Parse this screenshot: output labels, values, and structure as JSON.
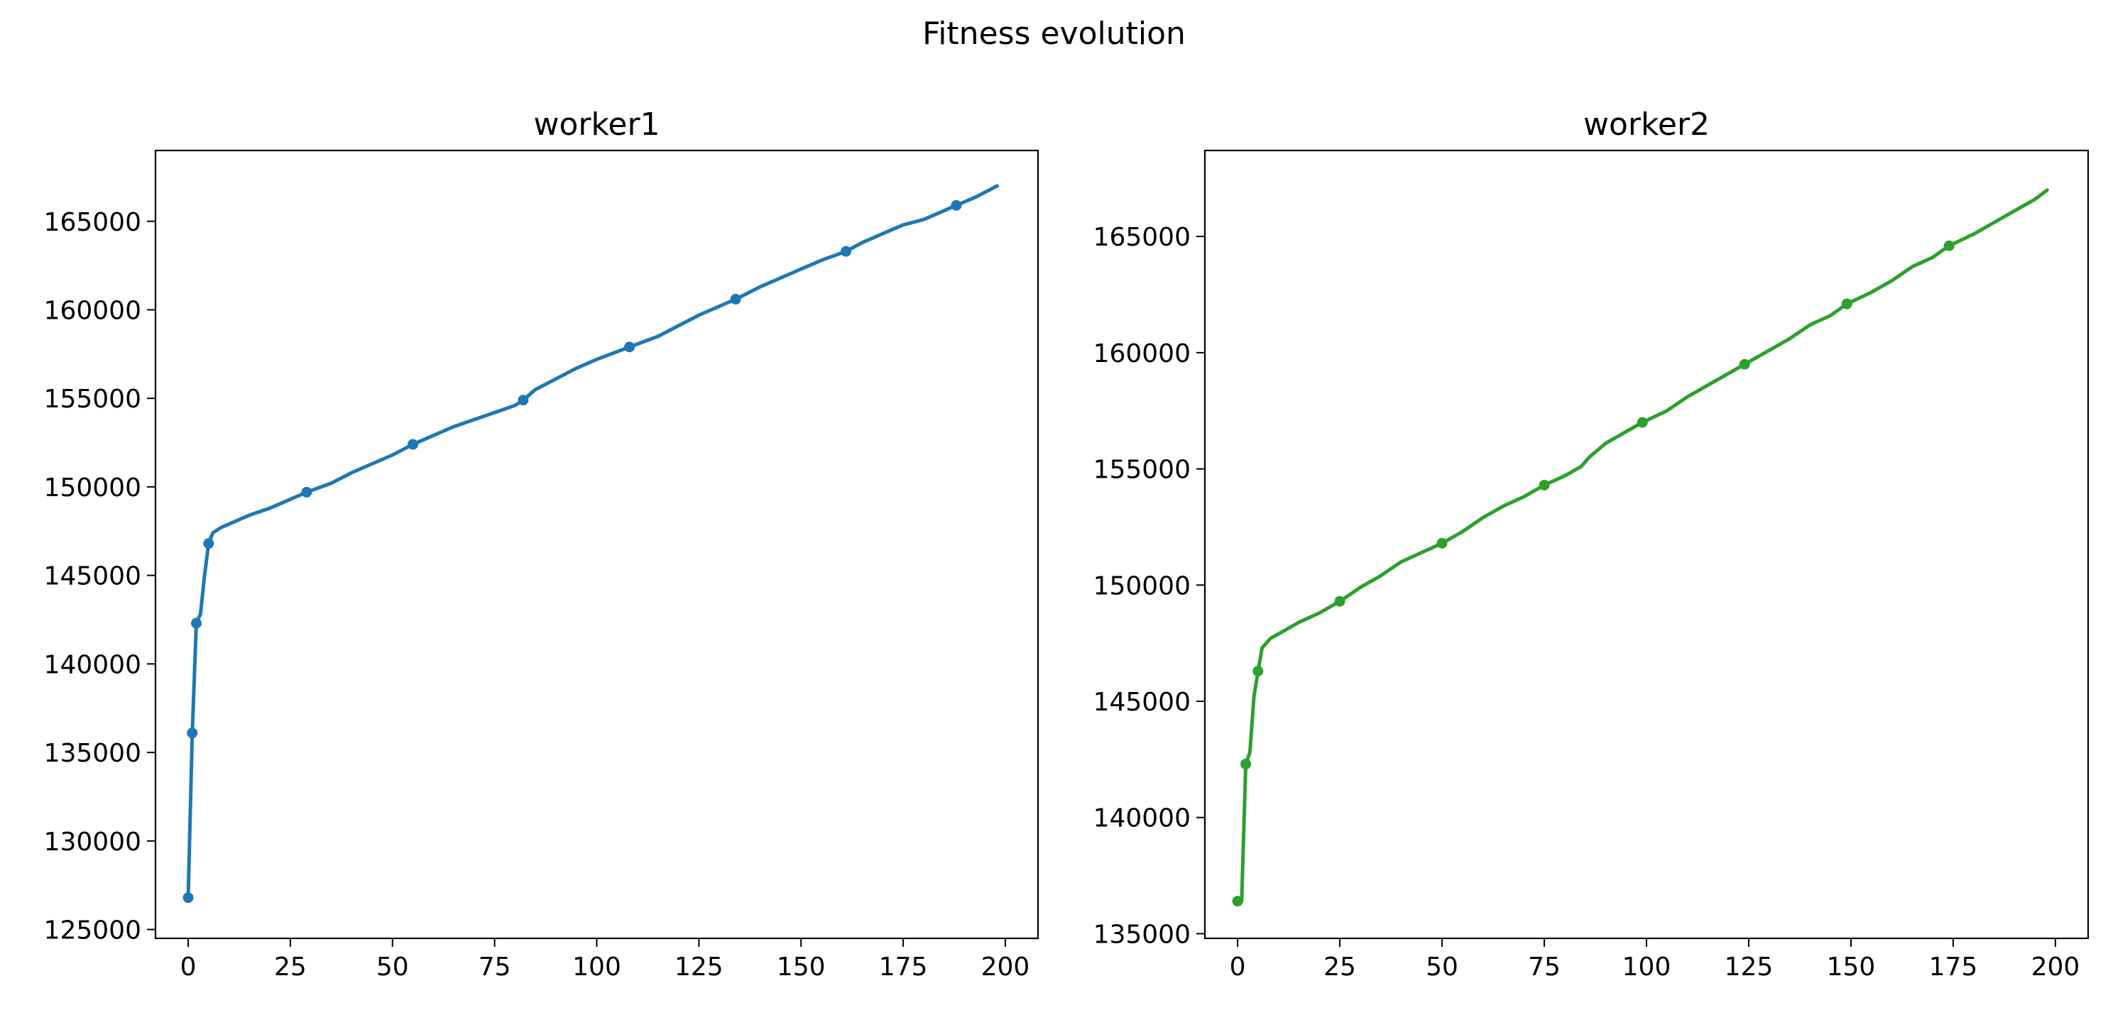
{
  "figure": {
    "suptitle": "Fitness evolution"
  },
  "chart_data": [
    {
      "type": "line",
      "title": "worker1",
      "xlabel": "",
      "ylabel": "",
      "color": "#1f77b4",
      "xlim": [
        -8,
        208
      ],
      "ylim": [
        124500,
        169000
      ],
      "xticks": [
        0,
        25,
        50,
        75,
        100,
        125,
        150,
        175,
        200
      ],
      "yticks": [
        125000,
        130000,
        135000,
        140000,
        145000,
        150000,
        155000,
        160000,
        165000
      ],
      "grid": false,
      "series": [
        {
          "x": [
            0,
            1,
            2,
            3,
            4,
            5,
            6,
            8,
            10,
            15,
            20,
            25,
            29,
            35,
            40,
            45,
            50,
            55,
            60,
            65,
            70,
            75,
            80,
            82,
            85,
            90,
            95,
            100,
            108,
            115,
            120,
            125,
            130,
            134,
            140,
            145,
            150,
            155,
            161,
            165,
            170,
            175,
            180,
            188,
            193,
            198
          ],
          "y": [
            126800,
            136100,
            142300,
            142800,
            145000,
            146800,
            147400,
            147700,
            147900,
            148400,
            148800,
            149300,
            149700,
            150200,
            150800,
            151300,
            151800,
            152400,
            152900,
            153400,
            153800,
            154200,
            154600,
            154900,
            155500,
            156100,
            156700,
            157200,
            157900,
            158500,
            159100,
            159700,
            160200,
            160600,
            161300,
            161800,
            162300,
            162800,
            163300,
            163800,
            164300,
            164800,
            165100,
            165900,
            166400,
            167000
          ],
          "markers_x": [
            0,
            1,
            2,
            5,
            29,
            55,
            82,
            108,
            134,
            161,
            188
          ],
          "markers_y": [
            126800,
            136100,
            142300,
            146800,
            149700,
            152400,
            154900,
            157900,
            160600,
            163300,
            165900
          ]
        }
      ]
    },
    {
      "type": "line",
      "title": "worker2",
      "xlabel": "",
      "ylabel": "",
      "color": "#2ca02c",
      "xlim": [
        -8,
        208
      ],
      "ylim": [
        134800,
        168700
      ],
      "xticks": [
        0,
        25,
        50,
        75,
        100,
        125,
        150,
        175,
        200
      ],
      "yticks": [
        135000,
        140000,
        145000,
        150000,
        155000,
        160000,
        165000
      ],
      "grid": false,
      "series": [
        {
          "x": [
            0,
            1,
            2,
            3,
            4,
            5,
            6,
            8,
            10,
            15,
            20,
            25,
            30,
            35,
            40,
            45,
            50,
            55,
            60,
            65,
            70,
            75,
            80,
            84,
            86,
            90,
            95,
            99,
            105,
            110,
            115,
            120,
            124,
            130,
            135,
            140,
            145,
            149,
            155,
            160,
            165,
            170,
            174,
            180,
            185,
            190,
            195,
            198
          ],
          "y": [
            136400,
            136400,
            142300,
            142800,
            145200,
            146300,
            147300,
            147700,
            147900,
            148400,
            148800,
            149300,
            149900,
            150400,
            151000,
            151400,
            151800,
            152300,
            152900,
            153400,
            153800,
            154300,
            154700,
            155100,
            155500,
            156100,
            156600,
            157000,
            157500,
            158100,
            158600,
            159100,
            159500,
            160100,
            160600,
            161200,
            161600,
            162100,
            162600,
            163100,
            163700,
            164100,
            164600,
            165100,
            165600,
            166100,
            166600,
            167000
          ],
          "markers_x": [
            0,
            2,
            5,
            25,
            50,
            75,
            99,
            124,
            149,
            174
          ],
          "markers_y": [
            136400,
            142300,
            146300,
            149300,
            151800,
            154300,
            157000,
            159500,
            162100,
            164600
          ]
        }
      ]
    }
  ]
}
